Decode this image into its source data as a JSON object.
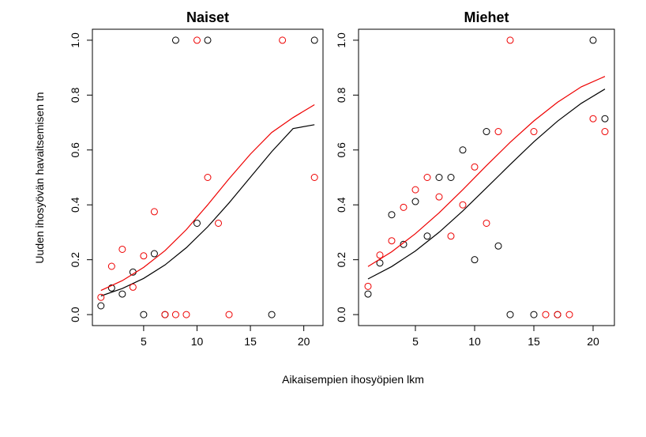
{
  "chart_data": {
    "type": "scatter",
    "xlabel": "Aikaisempien ihosyöpien lkm",
    "ylabel": "Uuden ihosyövän havaitsemisen tn",
    "panels": [
      {
        "title": "Naiset",
        "xlim": [
          0.2,
          21.8
        ],
        "ylim": [
          -0.04,
          1.04
        ],
        "xticks": [
          "5",
          "10",
          "15",
          "20"
        ],
        "yticks": [
          "0.0",
          "0.2",
          "0.4",
          "0.6",
          "0.8",
          "1.0"
        ],
        "series": [
          {
            "color": "#000000",
            "points": [
              [
                1,
                0.032
              ],
              [
                2,
                0.097
              ],
              [
                3,
                0.075
              ],
              [
                4,
                0.155
              ],
              [
                5,
                0.0
              ],
              [
                6,
                0.222
              ],
              [
                7,
                0.0
              ],
              [
                8,
                1.0
              ],
              [
                10,
                0.333
              ],
              [
                11,
                1.0
              ],
              [
                17,
                0.0
              ],
              [
                21,
                1.0
              ]
            ],
            "curve": [
              [
                1,
                0.068
              ],
              [
                3,
                0.095
              ],
              [
                5,
                0.132
              ],
              [
                7,
                0.181
              ],
              [
                9,
                0.244
              ],
              [
                11,
                0.32
              ],
              [
                13,
                0.407
              ],
              [
                15,
                0.501
              ],
              [
                17,
                0.594
              ],
              [
                19,
                0.678
              ],
              [
                21,
                0.692
              ]
            ]
          },
          {
            "color": "#ee0000",
            "points": [
              [
                1,
                0.063
              ],
              [
                2,
                0.176
              ],
              [
                3,
                0.238
              ],
              [
                4,
                0.1
              ],
              [
                5,
                0.214
              ],
              [
                6,
                0.375
              ],
              [
                7,
                0.0
              ],
              [
                8,
                0.0
              ],
              [
                9,
                0.0
              ],
              [
                10,
                1.0
              ],
              [
                11,
                0.5
              ],
              [
                12,
                0.333
              ],
              [
                13,
                0.0
              ],
              [
                18,
                1.0
              ],
              [
                21,
                0.5
              ]
            ],
            "curve": [
              [
                1,
                0.088
              ],
              [
                3,
                0.124
              ],
              [
                5,
                0.172
              ],
              [
                7,
                0.233
              ],
              [
                9,
                0.31
              ],
              [
                11,
                0.4
              ],
              [
                13,
                0.495
              ],
              [
                15,
                0.585
              ],
              [
                17,
                0.664
              ],
              [
                19,
                0.718
              ],
              [
                21,
                0.765
              ]
            ]
          }
        ]
      },
      {
        "title": "Miehet",
        "xlim": [
          0.2,
          21.8
        ],
        "ylim": [
          -0.04,
          1.04
        ],
        "xticks": [
          "5",
          "10",
          "15",
          "20"
        ],
        "yticks": [
          "0.0",
          "0.2",
          "0.4",
          "0.6",
          "0.8",
          "1.0"
        ],
        "series": [
          {
            "color": "#000000",
            "points": [
              [
                1,
                0.075
              ],
              [
                2,
                0.188
              ],
              [
                3,
                0.364
              ],
              [
                4,
                0.256
              ],
              [
                5,
                0.412
              ],
              [
                6,
                0.286
              ],
              [
                7,
                0.5
              ],
              [
                8,
                0.5
              ],
              [
                9,
                0.6
              ],
              [
                10,
                0.2
              ],
              [
                11,
                0.667
              ],
              [
                12,
                0.25
              ],
              [
                13,
                0.0
              ],
              [
                15,
                0.0
              ],
              [
                17,
                0.0
              ],
              [
                20,
                1.0
              ],
              [
                21,
                0.714
              ]
            ],
            "curve": [
              [
                1,
                0.13
              ],
              [
                3,
                0.175
              ],
              [
                5,
                0.232
              ],
              [
                7,
                0.3
              ],
              [
                9,
                0.378
              ],
              [
                11,
                0.462
              ],
              [
                13,
                0.547
              ],
              [
                15,
                0.63
              ],
              [
                17,
                0.705
              ],
              [
                19,
                0.77
              ],
              [
                21,
                0.822
              ]
            ]
          },
          {
            "color": "#ee0000",
            "points": [
              [
                1,
                0.103
              ],
              [
                2,
                0.217
              ],
              [
                3,
                0.269
              ],
              [
                4,
                0.391
              ],
              [
                5,
                0.455
              ],
              [
                6,
                0.5
              ],
              [
                7,
                0.429
              ],
              [
                8,
                0.286
              ],
              [
                9,
                0.4
              ],
              [
                10,
                0.538
              ],
              [
                11,
                0.333
              ],
              [
                12,
                0.667
              ],
              [
                13,
                1.0
              ],
              [
                15,
                0.667
              ],
              [
                16,
                0.0
              ],
              [
                17,
                0.0
              ],
              [
                18,
                0.0
              ],
              [
                20,
                0.714
              ],
              [
                21,
                0.667
              ]
            ],
            "curve": [
              [
                1,
                0.175
              ],
              [
                3,
                0.229
              ],
              [
                5,
                0.295
              ],
              [
                7,
                0.371
              ],
              [
                9,
                0.455
              ],
              [
                11,
                0.543
              ],
              [
                13,
                0.628
              ],
              [
                15,
                0.706
              ],
              [
                17,
                0.774
              ],
              [
                19,
                0.83
              ],
              [
                21,
                0.868
              ]
            ]
          }
        ]
      }
    ]
  }
}
